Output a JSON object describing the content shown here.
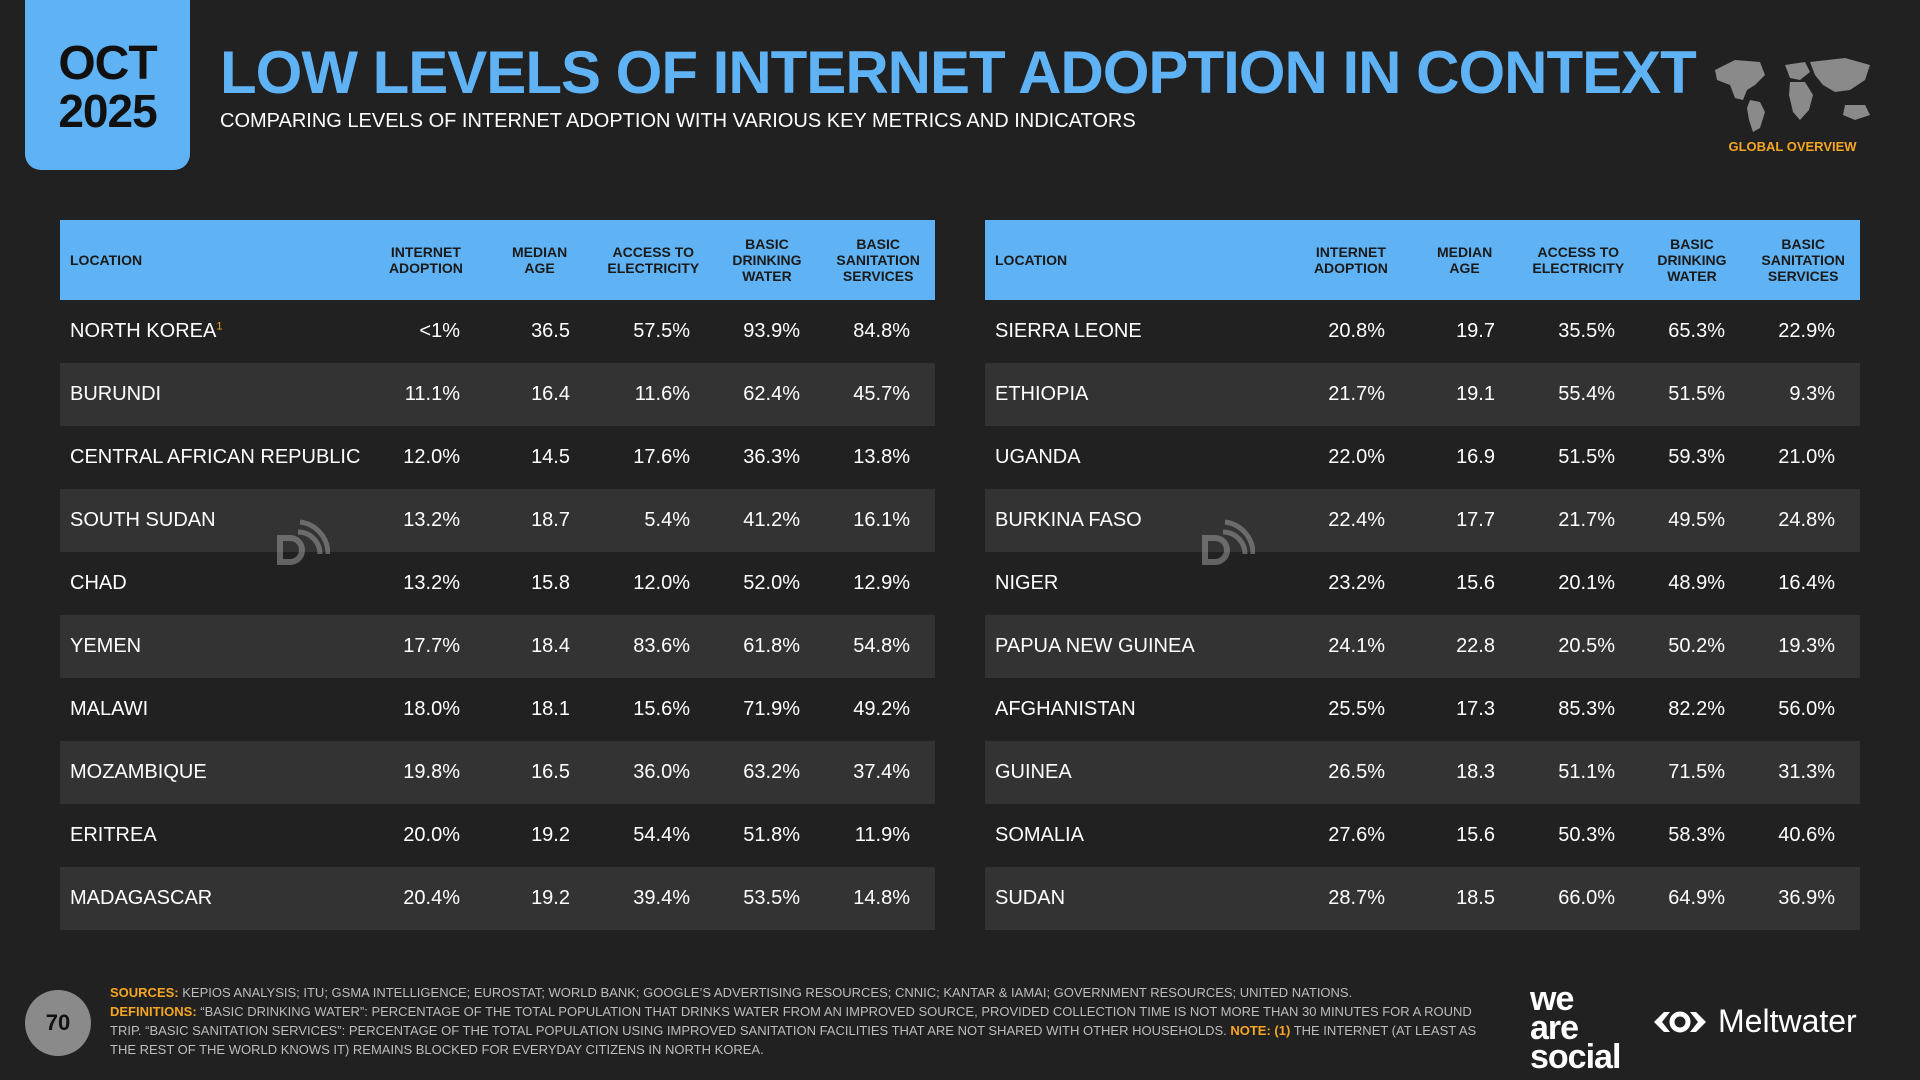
{
  "header": {
    "month": "OCT",
    "year": "2025",
    "title": "LOW LEVELS OF INTERNET ADOPTION IN CONTEXT",
    "subtitle": "COMPARING LEVELS OF INTERNET ADOPTION WITH VARIOUS KEY METRICS AND INDICATORS",
    "badge": "GLOBAL OVERVIEW"
  },
  "columns": {
    "location": "LOCATION",
    "internet_adoption": [
      "INTERNET",
      "ADOPTION"
    ],
    "median_age": [
      "MEDIAN",
      "AGE"
    ],
    "electricity": [
      "ACCESS TO",
      "ELECTRICITY"
    ],
    "water": [
      "BASIC",
      "DRINKING",
      "WATER"
    ],
    "sanitation": [
      "BASIC",
      "SANITATION",
      "SERVICES"
    ]
  },
  "left_table": [
    {
      "location": "NORTH KOREA",
      "note": "1",
      "internet": "<1%",
      "age": "36.5",
      "electricity": "57.5%",
      "water": "93.9%",
      "sanitation": "84.8%"
    },
    {
      "location": "BURUNDI",
      "internet": "11.1%",
      "age": "16.4",
      "electricity": "11.6%",
      "water": "62.4%",
      "sanitation": "45.7%"
    },
    {
      "location": "CENTRAL AFRICAN REPUBLIC",
      "internet": "12.0%",
      "age": "14.5",
      "electricity": "17.6%",
      "water": "36.3%",
      "sanitation": "13.8%"
    },
    {
      "location": "SOUTH SUDAN",
      "internet": "13.2%",
      "age": "18.7",
      "electricity": "5.4%",
      "water": "41.2%",
      "sanitation": "16.1%"
    },
    {
      "location": "CHAD",
      "internet": "13.2%",
      "age": "15.8",
      "electricity": "12.0%",
      "water": "52.0%",
      "sanitation": "12.9%"
    },
    {
      "location": "YEMEN",
      "internet": "17.7%",
      "age": "18.4",
      "electricity": "83.6%",
      "water": "61.8%",
      "sanitation": "54.8%"
    },
    {
      "location": "MALAWI",
      "internet": "18.0%",
      "age": "18.1",
      "electricity": "15.6%",
      "water": "71.9%",
      "sanitation": "49.2%"
    },
    {
      "location": "MOZAMBIQUE",
      "internet": "19.8%",
      "age": "16.5",
      "electricity": "36.0%",
      "water": "63.2%",
      "sanitation": "37.4%"
    },
    {
      "location": "ERITREA",
      "internet": "20.0%",
      "age": "19.2",
      "electricity": "54.4%",
      "water": "51.8%",
      "sanitation": "11.9%"
    },
    {
      "location": "MADAGASCAR",
      "internet": "20.4%",
      "age": "19.2",
      "electricity": "39.4%",
      "water": "53.5%",
      "sanitation": "14.8%"
    }
  ],
  "right_table": [
    {
      "location": "SIERRA LEONE",
      "internet": "20.8%",
      "age": "19.7",
      "electricity": "35.5%",
      "water": "65.3%",
      "sanitation": "22.9%"
    },
    {
      "location": "ETHIOPIA",
      "internet": "21.7%",
      "age": "19.1",
      "electricity": "55.4%",
      "water": "51.5%",
      "sanitation": "9.3%"
    },
    {
      "location": "UGANDA",
      "internet": "22.0%",
      "age": "16.9",
      "electricity": "51.5%",
      "water": "59.3%",
      "sanitation": "21.0%"
    },
    {
      "location": "BURKINA FASO",
      "internet": "22.4%",
      "age": "17.7",
      "electricity": "21.7%",
      "water": "49.5%",
      "sanitation": "24.8%"
    },
    {
      "location": "NIGER",
      "internet": "23.2%",
      "age": "15.6",
      "electricity": "20.1%",
      "water": "48.9%",
      "sanitation": "16.4%"
    },
    {
      "location": "PAPUA NEW GUINEA",
      "internet": "24.1%",
      "age": "22.8",
      "electricity": "20.5%",
      "water": "50.2%",
      "sanitation": "19.3%"
    },
    {
      "location": "AFGHANISTAN",
      "internet": "25.5%",
      "age": "17.3",
      "electricity": "85.3%",
      "water": "82.2%",
      "sanitation": "56.0%"
    },
    {
      "location": "GUINEA",
      "internet": "26.5%",
      "age": "18.3",
      "electricity": "51.1%",
      "water": "71.5%",
      "sanitation": "31.3%"
    },
    {
      "location": "SOMALIA",
      "internet": "27.6%",
      "age": "15.6",
      "electricity": "50.3%",
      "water": "58.3%",
      "sanitation": "40.6%"
    },
    {
      "location": "SUDAN",
      "internet": "28.7%",
      "age": "18.5",
      "electricity": "66.0%",
      "water": "64.9%",
      "sanitation": "36.9%"
    }
  ],
  "footer": {
    "page_number": "70",
    "sources_label": "SOURCES:",
    "sources_text": " KEPIOS ANALYSIS; ITU; GSMA INTELLIGENCE; EUROSTAT; WORLD BANK; GOOGLE’S ADVERTISING RESOURCES; CNNIC; KANTAR & IAMAI; GOVERNMENT RESOURCES; UNITED NATIONS.",
    "definitions_label": "DEFINITIONS:",
    "definitions_text": " “BASIC DRINKING WATER”: PERCENTAGE OF THE TOTAL POPULATION THAT DRINKS WATER FROM AN IMPROVED SOURCE, PROVIDED COLLECTION TIME IS NOT MORE THAN 30 MINUTES FOR A ROUND TRIP. “BASIC SANITATION SERVICES”: PERCENTAGE OF THE TOTAL POPULATION USING IMPROVED SANITATION FACILITIES THAT ARE NOT SHARED WITH OTHER HOUSEHOLDS.",
    "note_label": " NOTE:",
    "note_marker": " (1)",
    "note_text": " THE INTERNET (AT LEAST AS THE REST OF THE WORLD KNOWS IT) REMAINS BLOCKED FOR EVERYDAY CITIZENS IN NORTH KOREA.",
    "brand_1": [
      "we",
      "are",
      "social"
    ],
    "brand_2": "Meltwater"
  },
  "colors": {
    "accent_blue": "#5fb3f5",
    "accent_orange": "#f5a623",
    "background": "#212121",
    "row_alt": "#333333"
  }
}
